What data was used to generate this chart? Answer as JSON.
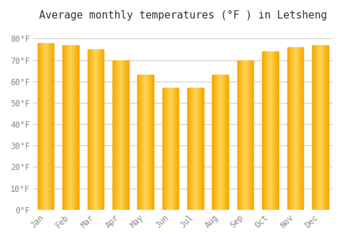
{
  "title": "Average monthly temperatures (°F ) in Letsheng",
  "months": [
    "Jan",
    "Feb",
    "Mar",
    "Apr",
    "May",
    "Jun",
    "Jul",
    "Aug",
    "Sep",
    "Oct",
    "Nov",
    "Dec"
  ],
  "values": [
    78,
    77,
    75,
    70,
    63,
    57,
    57,
    63,
    70,
    74,
    76,
    77
  ],
  "bar_color_top": "#FDB515",
  "bar_color_bottom": "#FFC84A",
  "background_color": "#FFFFFF",
  "plot_bg_color": "#FFFFFF",
  "grid_color": "#CCCCCC",
  "ylim": [
    0,
    85
  ],
  "yticks": [
    0,
    10,
    20,
    30,
    40,
    50,
    60,
    70,
    80
  ],
  "ytick_labels": [
    "0°F",
    "10°F",
    "20°F",
    "30°F",
    "40°F",
    "50°F",
    "60°F",
    "70°F",
    "80°F"
  ],
  "title_fontsize": 11,
  "tick_fontsize": 8.5,
  "title_font_family": "monospace"
}
